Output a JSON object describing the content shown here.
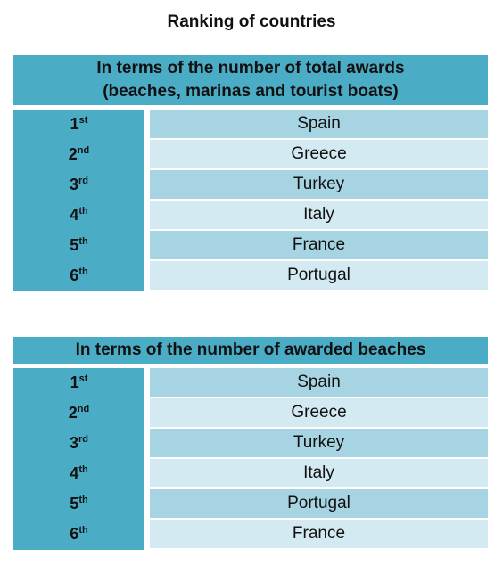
{
  "title": "Ranking of countries",
  "tables": [
    {
      "header": [
        "In terms of the number of total awards",
        "(beaches, marinas and tourist boats)"
      ],
      "rows": [
        {
          "rank": "1",
          "suffix": "st",
          "country": "Spain"
        },
        {
          "rank": "2",
          "suffix": "nd",
          "country": "Greece"
        },
        {
          "rank": "3",
          "suffix": "rd",
          "country": "Turkey"
        },
        {
          "rank": "4",
          "suffix": "th",
          "country": "Italy"
        },
        {
          "rank": "5",
          "suffix": "th",
          "country": "France"
        },
        {
          "rank": "6",
          "suffix": "th",
          "country": "Portugal"
        }
      ]
    },
    {
      "header": [
        "In terms of the number of awarded beaches"
      ],
      "rows": [
        {
          "rank": "1",
          "suffix": "st",
          "country": "Spain"
        },
        {
          "rank": "2",
          "suffix": "nd",
          "country": "Greece"
        },
        {
          "rank": "3",
          "suffix": "rd",
          "country": "Turkey"
        },
        {
          "rank": "4",
          "suffix": "th",
          "country": "Italy"
        },
        {
          "rank": "5",
          "suffix": "th",
          "country": "Portugal"
        },
        {
          "rank": "6",
          "suffix": "th",
          "country": "France"
        }
      ]
    }
  ]
}
